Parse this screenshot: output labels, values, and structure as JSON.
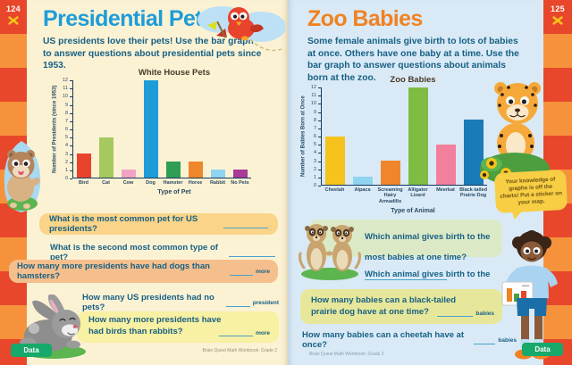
{
  "book": {
    "footer": "Brain Quest Math Workbook: Grade 2",
    "section_tab": "Data"
  },
  "left_page": {
    "page_number": "124",
    "title": "Presidential Pets",
    "intro": "US presidents love their pets! Use the bar graph to answer questions about presidential pets since 1953.",
    "questions": {
      "q1": {
        "text": "What is the most common pet for US presidents?"
      },
      "q2": {
        "text": "What is the second most common type of pet?"
      },
      "q3": {
        "text": "How many more presidents have had dogs than hamsters?",
        "suffix": "more"
      },
      "q4": {
        "text": "How many US presidents had no pets?",
        "suffix": "president"
      },
      "q5": {
        "text": "How many more presidents have had birds than rabbits?",
        "suffix": "more"
      }
    }
  },
  "right_page": {
    "page_number": "125",
    "title": "Zoo Babies",
    "intro": "Some female animals give birth to lots of babies at once. Others have one baby at a time. Use the bar graph to answer questions about animals born at the zoo.",
    "questions": {
      "q1": {
        "text": "Which animal gives birth to the most babies at one time?"
      },
      "q2": {
        "text": "Which animal gives birth to the fewest babies at once?"
      },
      "q3": {
        "text": "How many babies can a black-tailed prairie dog have at one time?",
        "suffix": "babies"
      },
      "q4": {
        "text": "How many babies can a cheetah have at once?",
        "suffix": "babies"
      }
    },
    "speech_bubble": "Your knowledge of graphs is off the charts! Put a sticker on your map."
  },
  "chart_data": [
    {
      "type": "bar",
      "title": "White House Pets",
      "categories": [
        "Bird",
        "Cat",
        "Cow",
        "Dog",
        "Hamster",
        "Horse",
        "Rabbit",
        "No Pets"
      ],
      "values": [
        3,
        5,
        1,
        12,
        2,
        2,
        1,
        1
      ],
      "colors": [
        "#E8432D",
        "#A5C95F",
        "#F2A3C5",
        "#1E9CD8",
        "#2F9E54",
        "#F0862B",
        "#8FD4F0",
        "#A93A96"
      ],
      "xlabel": "Type of Pet",
      "ylabel": "Number of Presidents (since 1953)",
      "ylim": [
        0,
        12
      ],
      "grid": false,
      "legend": "none"
    },
    {
      "type": "bar",
      "title": "Zoo Babies",
      "categories": [
        "Cheetah",
        "Alpaca",
        "Screaming Hairy Armadillo",
        "Alligator Lizard",
        "Meerkat",
        "Black-tailed Prairie Dog"
      ],
      "values": [
        6,
        1,
        3,
        12,
        5,
        8
      ],
      "colors": [
        "#F6C31C",
        "#8FD4F0",
        "#F0862B",
        "#7FBC42",
        "#F27F9B",
        "#1B7AB8"
      ],
      "xlabel": "Type of Animal",
      "ylabel": "Number of Babies Born at Once",
      "ylim": [
        0,
        12
      ],
      "grid": false,
      "legend": "none"
    }
  ]
}
